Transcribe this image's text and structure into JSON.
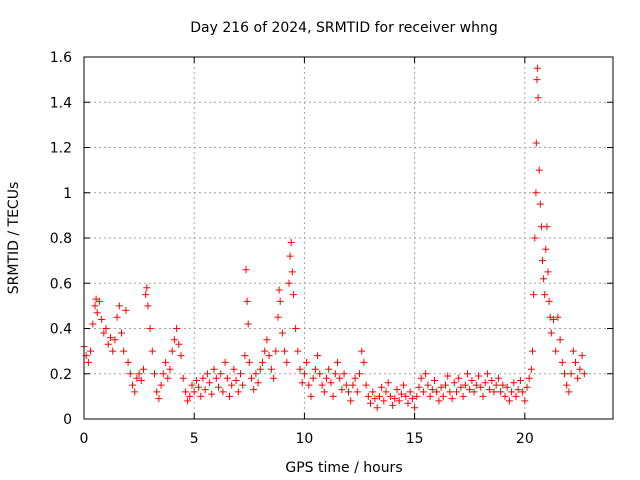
{
  "chart_data": {
    "type": "scatter",
    "title": "Day 216 of 2024, SRMTID for receiver whng",
    "xlabel": "GPS time / hours",
    "ylabel": "SRMTID / TECUs",
    "xlim": [
      0,
      24
    ],
    "ylim": [
      0,
      1.6
    ],
    "xticks": [
      0,
      5,
      10,
      15,
      20
    ],
    "xtick_labels": [
      "0",
      "5",
      "10",
      "15",
      "20"
    ],
    "yticks": [
      0,
      0.2,
      0.4,
      0.6,
      0.8,
      1.0,
      1.2,
      1.4,
      1.6
    ],
    "ytick_labels": [
      "0",
      "0.2",
      "0.4",
      "0.6",
      "0.8",
      "1",
      "1.2",
      "1.4",
      "1.6"
    ],
    "grid": true,
    "marker": "+",
    "color": "#ff0000",
    "series": [
      {
        "name": "SRMTID",
        "points": [
          [
            0.0,
            0.32
          ],
          [
            0.1,
            0.28
          ],
          [
            0.2,
            0.25
          ],
          [
            0.3,
            0.3
          ],
          [
            0.4,
            0.42
          ],
          [
            0.5,
            0.5
          ],
          [
            0.55,
            0.53
          ],
          [
            0.6,
            0.47
          ],
          [
            0.7,
            0.52
          ],
          [
            0.8,
            0.44
          ],
          [
            0.9,
            0.38
          ],
          [
            1.0,
            0.4
          ],
          [
            1.1,
            0.33
          ],
          [
            1.2,
            0.36
          ],
          [
            1.3,
            0.3
          ],
          [
            1.4,
            0.35
          ],
          [
            1.5,
            0.45
          ],
          [
            1.6,
            0.5
          ],
          [
            1.7,
            0.38
          ],
          [
            1.8,
            0.3
          ],
          [
            1.9,
            0.48
          ],
          [
            2.0,
            0.25
          ],
          [
            2.1,
            0.2
          ],
          [
            2.2,
            0.15
          ],
          [
            2.3,
            0.12
          ],
          [
            2.4,
            0.18
          ],
          [
            2.5,
            0.2
          ],
          [
            2.6,
            0.17
          ],
          [
            2.7,
            0.22
          ],
          [
            2.8,
            0.55
          ],
          [
            2.85,
            0.58
          ],
          [
            2.9,
            0.5
          ],
          [
            3.0,
            0.4
          ],
          [
            3.1,
            0.3
          ],
          [
            3.2,
            0.2
          ],
          [
            3.3,
            0.12
          ],
          [
            3.4,
            0.09
          ],
          [
            3.5,
            0.15
          ],
          [
            3.6,
            0.2
          ],
          [
            3.7,
            0.25
          ],
          [
            3.8,
            0.18
          ],
          [
            3.9,
            0.22
          ],
          [
            4.0,
            0.3
          ],
          [
            4.1,
            0.35
          ],
          [
            4.2,
            0.4
          ],
          [
            4.3,
            0.33
          ],
          [
            4.4,
            0.28
          ],
          [
            4.5,
            0.18
          ],
          [
            4.6,
            0.12
          ],
          [
            4.7,
            0.08
          ],
          [
            4.8,
            0.1
          ],
          [
            4.9,
            0.15
          ],
          [
            5.0,
            0.12
          ],
          [
            5.1,
            0.17
          ],
          [
            5.2,
            0.14
          ],
          [
            5.3,
            0.1
          ],
          [
            5.4,
            0.18
          ],
          [
            5.5,
            0.13
          ],
          [
            5.6,
            0.2
          ],
          [
            5.7,
            0.16
          ],
          [
            5.8,
            0.11
          ],
          [
            5.9,
            0.22
          ],
          [
            6.0,
            0.18
          ],
          [
            6.1,
            0.14
          ],
          [
            6.2,
            0.2
          ],
          [
            6.3,
            0.12
          ],
          [
            6.4,
            0.25
          ],
          [
            6.5,
            0.18
          ],
          [
            6.6,
            0.1
          ],
          [
            6.7,
            0.15
          ],
          [
            6.8,
            0.22
          ],
          [
            6.9,
            0.17
          ],
          [
            7.0,
            0.12
          ],
          [
            7.1,
            0.2
          ],
          [
            7.2,
            0.15
          ],
          [
            7.3,
            0.28
          ],
          [
            7.35,
            0.66
          ],
          [
            7.4,
            0.52
          ],
          [
            7.45,
            0.42
          ],
          [
            7.5,
            0.25
          ],
          [
            7.6,
            0.18
          ],
          [
            7.7,
            0.13
          ],
          [
            7.8,
            0.2
          ],
          [
            7.9,
            0.16
          ],
          [
            8.0,
            0.22
          ],
          [
            8.1,
            0.25
          ],
          [
            8.2,
            0.3
          ],
          [
            8.3,
            0.35
          ],
          [
            8.4,
            0.28
          ],
          [
            8.5,
            0.22
          ],
          [
            8.6,
            0.18
          ],
          [
            8.7,
            0.3
          ],
          [
            8.8,
            0.45
          ],
          [
            8.85,
            0.57
          ],
          [
            8.9,
            0.52
          ],
          [
            9.0,
            0.38
          ],
          [
            9.1,
            0.3
          ],
          [
            9.2,
            0.25
          ],
          [
            9.3,
            0.6
          ],
          [
            9.35,
            0.72
          ],
          [
            9.4,
            0.78
          ],
          [
            9.45,
            0.65
          ],
          [
            9.5,
            0.55
          ],
          [
            9.6,
            0.4
          ],
          [
            9.7,
            0.3
          ],
          [
            9.8,
            0.22
          ],
          [
            9.9,
            0.16
          ],
          [
            10.0,
            0.2
          ],
          [
            10.1,
            0.25
          ],
          [
            10.2,
            0.15
          ],
          [
            10.3,
            0.1
          ],
          [
            10.4,
            0.18
          ],
          [
            10.5,
            0.22
          ],
          [
            10.6,
            0.28
          ],
          [
            10.7,
            0.2
          ],
          [
            10.8,
            0.15
          ],
          [
            10.9,
            0.12
          ],
          [
            11.0,
            0.18
          ],
          [
            11.1,
            0.22
          ],
          [
            11.2,
            0.16
          ],
          [
            11.3,
            0.1
          ],
          [
            11.4,
            0.2
          ],
          [
            11.5,
            0.25
          ],
          [
            11.6,
            0.18
          ],
          [
            11.7,
            0.13
          ],
          [
            11.8,
            0.2
          ],
          [
            11.9,
            0.15
          ],
          [
            12.0,
            0.12
          ],
          [
            12.1,
            0.08
          ],
          [
            12.2,
            0.15
          ],
          [
            12.3,
            0.18
          ],
          [
            12.4,
            0.12
          ],
          [
            12.5,
            0.2
          ],
          [
            12.6,
            0.3
          ],
          [
            12.7,
            0.25
          ],
          [
            12.8,
            0.15
          ],
          [
            12.9,
            0.1
          ],
          [
            13.0,
            0.07
          ],
          [
            13.1,
            0.12
          ],
          [
            13.2,
            0.09
          ],
          [
            13.3,
            0.05
          ],
          [
            13.4,
            0.1
          ],
          [
            13.5,
            0.14
          ],
          [
            13.6,
            0.08
          ],
          [
            13.7,
            0.12
          ],
          [
            13.8,
            0.16
          ],
          [
            13.9,
            0.1
          ],
          [
            14.0,
            0.06
          ],
          [
            14.1,
            0.09
          ],
          [
            14.2,
            0.13
          ],
          [
            14.3,
            0.08
          ],
          [
            14.4,
            0.11
          ],
          [
            14.5,
            0.15
          ],
          [
            14.6,
            0.1
          ],
          [
            14.7,
            0.07
          ],
          [
            14.8,
            0.12
          ],
          [
            14.9,
            0.09
          ],
          [
            15.0,
            0.05
          ],
          [
            15.1,
            0.1
          ],
          [
            15.2,
            0.14
          ],
          [
            15.3,
            0.18
          ],
          [
            15.4,
            0.12
          ],
          [
            15.5,
            0.2
          ],
          [
            15.6,
            0.15
          ],
          [
            15.7,
            0.1
          ],
          [
            15.8,
            0.13
          ],
          [
            15.9,
            0.17
          ],
          [
            16.0,
            0.12
          ],
          [
            16.1,
            0.08
          ],
          [
            16.2,
            0.14
          ],
          [
            16.3,
            0.1
          ],
          [
            16.4,
            0.15
          ],
          [
            16.5,
            0.19
          ],
          [
            16.6,
            0.12
          ],
          [
            16.7,
            0.09
          ],
          [
            16.8,
            0.16
          ],
          [
            16.9,
            0.12
          ],
          [
            17.0,
            0.18
          ],
          [
            17.1,
            0.14
          ],
          [
            17.2,
            0.1
          ],
          [
            17.3,
            0.15
          ],
          [
            17.4,
            0.2
          ],
          [
            17.5,
            0.13
          ],
          [
            17.6,
            0.17
          ],
          [
            17.7,
            0.12
          ],
          [
            17.8,
            0.15
          ],
          [
            17.9,
            0.19
          ],
          [
            18.0,
            0.14
          ],
          [
            18.1,
            0.1
          ],
          [
            18.2,
            0.16
          ],
          [
            18.3,
            0.2
          ],
          [
            18.4,
            0.13
          ],
          [
            18.5,
            0.17
          ],
          [
            18.6,
            0.12
          ],
          [
            18.7,
            0.15
          ],
          [
            18.8,
            0.18
          ],
          [
            18.9,
            0.12
          ],
          [
            19.0,
            0.15
          ],
          [
            19.1,
            0.1
          ],
          [
            19.2,
            0.14
          ],
          [
            19.3,
            0.08
          ],
          [
            19.4,
            0.12
          ],
          [
            19.5,
            0.16
          ],
          [
            19.6,
            0.1
          ],
          [
            19.7,
            0.13
          ],
          [
            19.8,
            0.17
          ],
          [
            19.9,
            0.12
          ],
          [
            20.0,
            0.08
          ],
          [
            20.1,
            0.14
          ],
          [
            20.2,
            0.18
          ],
          [
            20.3,
            0.22
          ],
          [
            20.35,
            0.3
          ],
          [
            20.4,
            0.55
          ],
          [
            20.45,
            0.8
          ],
          [
            20.5,
            1.0
          ],
          [
            20.52,
            1.22
          ],
          [
            20.55,
            1.5
          ],
          [
            20.57,
            1.55
          ],
          [
            20.6,
            1.42
          ],
          [
            20.65,
            1.1
          ],
          [
            20.7,
            0.95
          ],
          [
            20.75,
            0.85
          ],
          [
            20.8,
            0.7
          ],
          [
            20.85,
            0.62
          ],
          [
            20.9,
            0.55
          ],
          [
            20.95,
            0.75
          ],
          [
            21.0,
            0.85
          ],
          [
            21.05,
            0.65
          ],
          [
            21.1,
            0.52
          ],
          [
            21.15,
            0.45
          ],
          [
            21.2,
            0.38
          ],
          [
            21.3,
            0.44
          ],
          [
            21.4,
            0.3
          ],
          [
            21.5,
            0.45
          ],
          [
            21.6,
            0.35
          ],
          [
            21.7,
            0.25
          ],
          [
            21.8,
            0.2
          ],
          [
            21.9,
            0.15
          ],
          [
            22.0,
            0.12
          ],
          [
            22.1,
            0.2
          ],
          [
            22.2,
            0.3
          ],
          [
            22.3,
            0.25
          ],
          [
            22.4,
            0.18
          ],
          [
            22.5,
            0.22
          ],
          [
            22.6,
            0.28
          ],
          [
            22.7,
            0.2
          ]
        ]
      }
    ]
  }
}
